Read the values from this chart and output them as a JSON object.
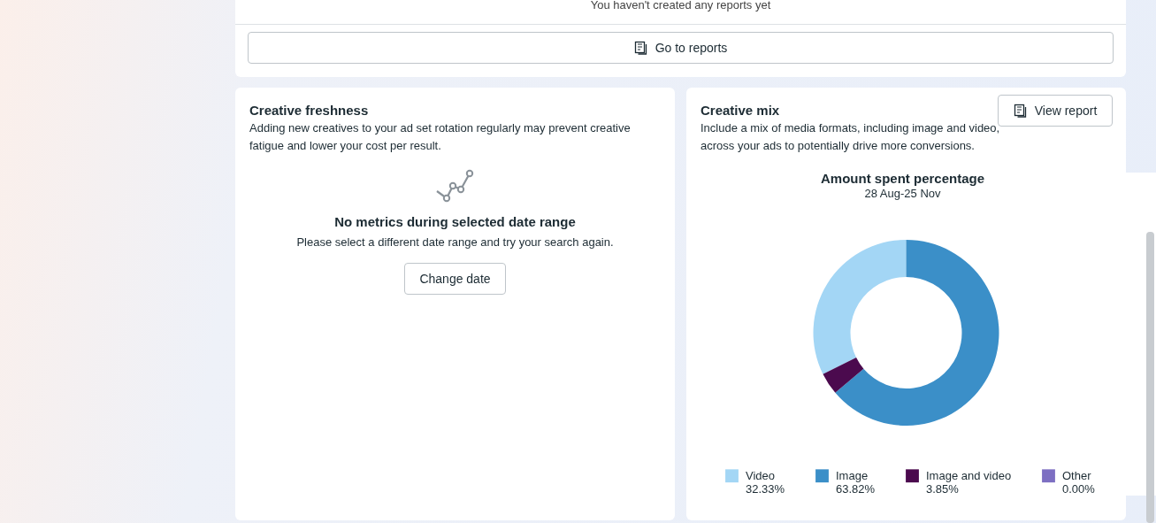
{
  "chart_data": [
    {
      "type": "other",
      "annotations": [
        "You haven't created any reports yet",
        "Go to reports"
      ]
    },
    {
      "type": "other",
      "title": "Creative freshness",
      "annotations": [
        "Adding new creatives to your ad set rotation regularly may prevent creative fatigue and lower your cost per result.",
        "No metrics during selected date range",
        "Please select a different date range and try your search again.",
        "Change date"
      ]
    },
    {
      "type": "donut",
      "title": "Amount spent percentage",
      "subtitle": "28 Aug-25 Nov",
      "categories": [
        "Video",
        "Image",
        "Image and video",
        "Other"
      ],
      "values": [
        32.33,
        63.82,
        3.85,
        0.0
      ],
      "colors": [
        "#a3d6f5",
        "#3b8fc8",
        "#4b0a4e",
        "#7d6fc2"
      ],
      "value_labels": [
        "32.33%",
        "63.82%",
        "3.85%",
        "0.00%"
      ],
      "legend": "bottom",
      "annotations": [
        "Creative mix",
        "Include a mix of media formats, including image and video, across your ads to potentially drive more conversions.",
        "View report"
      ]
    }
  ]
}
